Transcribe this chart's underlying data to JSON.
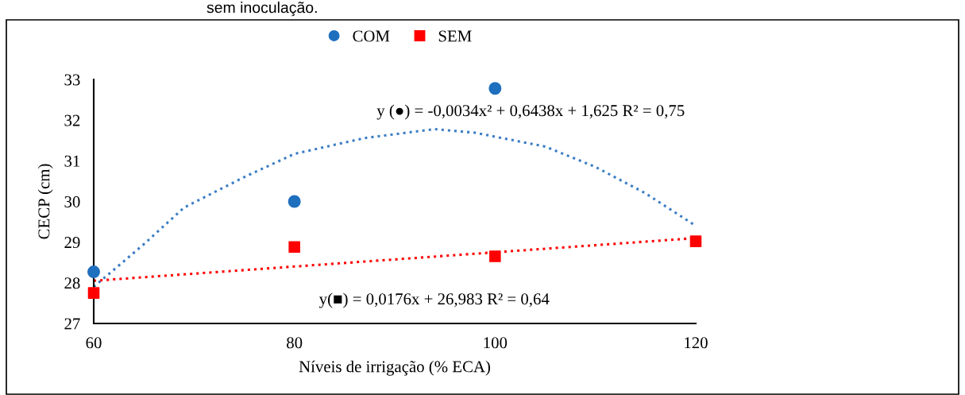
{
  "chart_data": {
    "type": "scatter",
    "xlabel": "Níveis de irrigação (% ECA)",
    "ylabel": "CECP (cm)",
    "x": [
      60,
      80,
      100,
      120
    ],
    "series": [
      {
        "name": "COM",
        "color": "#1f6fbf",
        "marker": "circle",
        "values": [
          28.27,
          30.0,
          32.78,
          null
        ]
      },
      {
        "name": "SEM",
        "color": "#ff0000",
        "marker": "square",
        "values": [
          27.75,
          28.88,
          28.65,
          29.02
        ]
      },
      {
        "type": "line",
        "color": "#3a7dc4",
        "line_style": "dotted",
        "x": [
          60,
          65,
          69,
          75,
          80,
          87,
          94,
          98,
          105,
          110,
          115,
          120
        ],
        "values": [
          27.9,
          28.95,
          29.85,
          30.6,
          31.17,
          31.56,
          31.78,
          31.69,
          31.35,
          30.85,
          30.2,
          29.4
        ]
      },
      {
        "type": "line",
        "color": "#ff0000",
        "line_style": "dotted",
        "x": [
          60,
          120
        ],
        "values": [
          28.05,
          29.1
        ]
      }
    ],
    "xlim": [
      60,
      120
    ],
    "xticks": [
      60,
      80,
      100,
      120
    ],
    "ylim": [
      27,
      33
    ],
    "yticks": [
      27,
      28,
      29,
      30,
      31,
      32,
      33
    ],
    "grid": false,
    "legend": "top",
    "annotations": [
      "sem inoculação.",
      "y (●) = -0,0034x² + 0,6438x + 1,625 R² = 0,75",
      "y(■) = 0,0176x + 26,983 R² = 0,64"
    ]
  }
}
